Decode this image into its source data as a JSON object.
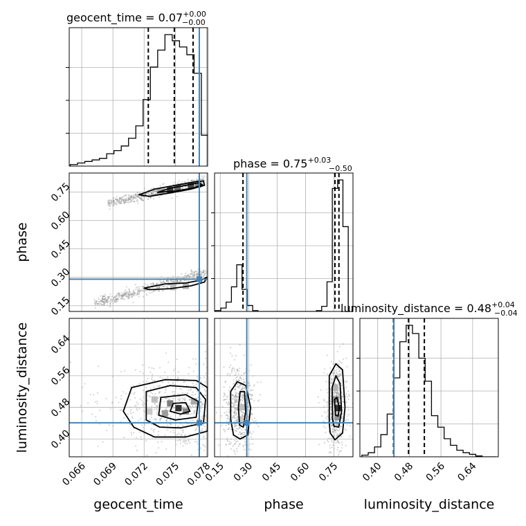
{
  "colors": {
    "truth": "#4682b4",
    "line": "#000000",
    "grid": "#b0b0b0"
  },
  "chart_data": {
    "type": "corner",
    "parameters": [
      "geocent_time",
      "phase",
      "luminosity_distance"
    ],
    "titles": {
      "geocent_time": {
        "prefix": "geocent_time = 0.07",
        "plus": "+0.00",
        "minus": "−0.00"
      },
      "phase": {
        "prefix": "phase = 0.75",
        "plus": "+0.03",
        "minus": "−0.50"
      },
      "luminosity_distance": {
        "prefix": "luminosity_distance = 0.48",
        "plus": "+0.04",
        "minus": "−0.04"
      }
    },
    "axes": {
      "geocent_time": {
        "range": [
          0.0648,
          0.0781
        ],
        "ticks": [
          "0.066",
          "0.069",
          "0.072",
          "0.075",
          "0.078"
        ]
      },
      "phase": {
        "range": [
          0.12,
          0.85
        ],
        "ticks": [
          "0.15",
          "0.30",
          "0.45",
          "0.60",
          "0.75"
        ]
      },
      "luminosity_distance": {
        "range": [
          0.355,
          0.705
        ],
        "ticks": [
          "0.40",
          "0.48",
          "0.56",
          "0.64"
        ]
      }
    },
    "truths": {
      "geocent_time": 0.0773,
      "phase": 0.29,
      "luminosity_distance": 0.441
    },
    "quantiles": {
      "geocent_time": [
        0.0724,
        0.0749,
        0.0767
      ],
      "phase": [
        0.27,
        0.755,
        0.776
      ],
      "luminosity_distance": [
        0.44,
        0.478,
        0.518
      ]
    },
    "histograms": {
      "geocent_time": {
        "edges": [
          0.0649,
          0.0656,
          0.0663,
          0.067,
          0.0677,
          0.0684,
          0.0691,
          0.0698,
          0.0705,
          0.0712,
          0.0719,
          0.0726,
          0.0733,
          0.074,
          0.0747,
          0.0754,
          0.0761,
          0.0768,
          0.0775,
          0.0781
        ],
        "counts": [
          1,
          2,
          3,
          4,
          5,
          8,
          10,
          13,
          18,
          26,
          43,
          64,
          75,
          85,
          81,
          77,
          72,
          60,
          20
        ]
      },
      "phase": {
        "edges": [
          0.125,
          0.153,
          0.181,
          0.209,
          0.237,
          0.265,
          0.293,
          0.321,
          0.349,
          0.377,
          0.405,
          0.433,
          0.461,
          0.489,
          0.517,
          0.545,
          0.573,
          0.601,
          0.629,
          0.657,
          0.685,
          0.713,
          0.741,
          0.769,
          0.797,
          0.825
        ],
        "counts": [
          2,
          8,
          22,
          58,
          110,
          52,
          14,
          2,
          0,
          0,
          0,
          0,
          0,
          0,
          0,
          0,
          0,
          0,
          0,
          2,
          12,
          70,
          290,
          310,
          200
        ]
      },
      "luminosity_distance": {
        "edges": [
          0.36,
          0.376,
          0.392,
          0.408,
          0.424,
          0.44,
          0.456,
          0.472,
          0.488,
          0.504,
          0.52,
          0.536,
          0.552,
          0.568,
          0.584,
          0.6,
          0.616,
          0.632,
          0.648,
          0.664,
          0.7
        ],
        "counts": [
          2,
          5,
          12,
          27,
          52,
          96,
          140,
          160,
          150,
          120,
          92,
          50,
          36,
          22,
          14,
          8,
          5,
          3,
          1,
          0
        ]
      }
    },
    "pairs": [
      {
        "x": "geocent_time",
        "y": "phase",
        "point_clusters": [
          {
            "x": [
              0.0685,
              0.0778
            ],
            "y": [
              0.69,
              0.808
            ],
            "thickness": 0.02
          },
          {
            "x": [
              0.0672,
              0.0781
            ],
            "y": [
              0.16,
              0.33
            ],
            "thickness": 0.022
          }
        ],
        "density_blocks": [
          {
            "x": 0.0745,
            "y": 0.76,
            "level": 0.9
          },
          {
            "x": 0.0752,
            "y": 0.77,
            "level": 0.7
          },
          {
            "x": 0.0765,
            "y": 0.785,
            "level": 0.85
          },
          {
            "x": 0.0772,
            "y": 0.79,
            "level": 0.6
          },
          {
            "x": 0.0735,
            "y": 0.75,
            "level": 0.4
          },
          {
            "x": 0.076,
            "y": 0.255,
            "level": 0.35
          },
          {
            "x": 0.0748,
            "y": 0.248,
            "level": 0.3
          }
        ],
        "contours": [
          [
            [
              0.0715,
              0.735
            ],
            [
              0.073,
              0.765
            ],
            [
              0.0755,
              0.79
            ],
            [
              0.077,
              0.805
            ],
            [
              0.0777,
              0.808
            ],
            [
              0.0778,
              0.785
            ],
            [
              0.0765,
              0.765
            ],
            [
              0.0745,
              0.745
            ],
            [
              0.0725,
              0.727
            ],
            [
              0.0715,
              0.735
            ]
          ],
          [
            [
              0.0733,
              0.748
            ],
            [
              0.0745,
              0.77
            ],
            [
              0.076,
              0.785
            ],
            [
              0.0772,
              0.798
            ],
            [
              0.0776,
              0.788
            ],
            [
              0.0768,
              0.772
            ],
            [
              0.075,
              0.755
            ],
            [
              0.0733,
              0.748
            ]
          ],
          [
            [
              0.072,
              0.243
            ],
            [
              0.074,
              0.265
            ],
            [
              0.076,
              0.27
            ],
            [
              0.0775,
              0.285
            ],
            [
              0.078,
              0.3
            ],
            [
              0.0778,
              0.275
            ],
            [
              0.0765,
              0.255
            ],
            [
              0.0745,
              0.24
            ],
            [
              0.0725,
              0.235
            ],
            [
              0.072,
              0.243
            ]
          ]
        ]
      },
      {
        "x": "geocent_time",
        "y": "luminosity_distance",
        "point_clusters": [
          {
            "x": [
              0.0653,
              0.078
            ],
            "y": [
              0.39,
              0.69
            ],
            "spread": "wide"
          }
        ],
        "density_blocks": [
          {
            "x": 0.0753,
            "y": 0.478,
            "level": 0.95
          },
          {
            "x": 0.0745,
            "y": 0.49,
            "level": 0.6
          },
          {
            "x": 0.076,
            "y": 0.47,
            "level": 0.55
          },
          {
            "x": 0.074,
            "y": 0.465,
            "level": 0.45
          },
          {
            "x": 0.0768,
            "y": 0.495,
            "level": 0.4
          },
          {
            "x": 0.073,
            "y": 0.5,
            "level": 0.3
          },
          {
            "x": 0.0725,
            "y": 0.47,
            "level": 0.25
          }
        ],
        "contours": [
          [
            [
              0.0745,
              0.47
            ],
            [
              0.0748,
              0.49
            ],
            [
              0.076,
              0.492
            ],
            [
              0.0764,
              0.47
            ],
            [
              0.0755,
              0.463
            ],
            [
              0.0745,
              0.47
            ]
          ],
          [
            [
              0.0734,
              0.46
            ],
            [
              0.0736,
              0.505
            ],
            [
              0.076,
              0.512
            ],
            [
              0.0772,
              0.495
            ],
            [
              0.077,
              0.455
            ],
            [
              0.075,
              0.448
            ],
            [
              0.0734,
              0.46
            ]
          ],
          [
            [
              0.0722,
              0.448
            ],
            [
              0.0722,
              0.52
            ],
            [
              0.0745,
              0.535
            ],
            [
              0.077,
              0.53
            ],
            [
              0.0779,
              0.5
            ],
            [
              0.0777,
              0.44
            ],
            [
              0.0755,
              0.428
            ],
            [
              0.0735,
              0.43
            ],
            [
              0.0722,
              0.448
            ]
          ],
          [
            [
              0.07,
              0.47
            ],
            [
              0.0708,
              0.53
            ],
            [
              0.074,
              0.55
            ],
            [
              0.077,
              0.548
            ],
            [
              0.0781,
              0.53
            ],
            [
              0.0781,
              0.42
            ],
            [
              0.076,
              0.405
            ],
            [
              0.073,
              0.405
            ],
            [
              0.071,
              0.43
            ],
            [
              0.07,
              0.47
            ]
          ]
        ]
      },
      {
        "x": "phase",
        "y": "luminosity_distance",
        "point_clusters": [
          {
            "x": [
              0.14,
              0.36
            ],
            "y": [
              0.39,
              0.69
            ]
          },
          {
            "x": [
              0.68,
              0.84
            ],
            "y": [
              0.39,
              0.69
            ]
          }
        ],
        "density_blocks": [
          {
            "x": 0.77,
            "y": 0.478,
            "level": 0.95
          },
          {
            "x": 0.76,
            "y": 0.5,
            "level": 0.55
          },
          {
            "x": 0.77,
            "y": 0.455,
            "level": 0.5
          },
          {
            "x": 0.755,
            "y": 0.53,
            "level": 0.35
          },
          {
            "x": 0.265,
            "y": 0.48,
            "level": 0.3
          },
          {
            "x": 0.255,
            "y": 0.45,
            "level": 0.25
          }
        ],
        "contours": [
          [
            [
              0.252,
              0.435
            ],
            [
              0.246,
              0.48
            ],
            [
              0.255,
              0.52
            ],
            [
              0.278,
              0.52
            ],
            [
              0.284,
              0.47
            ],
            [
              0.272,
              0.43
            ],
            [
              0.252,
              0.435
            ]
          ],
          [
            [
              0.205,
              0.45
            ],
            [
              0.205,
              0.52
            ],
            [
              0.24,
              0.545
            ],
            [
              0.285,
              0.535
            ],
            [
              0.31,
              0.48
            ],
            [
              0.295,
              0.41
            ],
            [
              0.255,
              0.4
            ],
            [
              0.22,
              0.41
            ],
            [
              0.205,
              0.45
            ]
          ],
          [
            [
              0.758,
              0.46
            ],
            [
              0.753,
              0.5
            ],
            [
              0.765,
              0.505
            ],
            [
              0.778,
              0.48
            ],
            [
              0.772,
              0.458
            ],
            [
              0.758,
              0.46
            ]
          ],
          [
            [
              0.742,
              0.45
            ],
            [
              0.74,
              0.53
            ],
            [
              0.76,
              0.56
            ],
            [
              0.782,
              0.54
            ],
            [
              0.79,
              0.47
            ],
            [
              0.775,
              0.43
            ],
            [
              0.75,
              0.432
            ],
            [
              0.742,
              0.45
            ]
          ],
          [
            [
              0.725,
              0.44
            ],
            [
              0.725,
              0.56
            ],
            [
              0.76,
              0.59
            ],
            [
              0.795,
              0.575
            ],
            [
              0.808,
              0.48
            ],
            [
              0.795,
              0.415
            ],
            [
              0.755,
              0.398
            ],
            [
              0.73,
              0.415
            ],
            [
              0.725,
              0.44
            ]
          ]
        ]
      }
    ]
  }
}
